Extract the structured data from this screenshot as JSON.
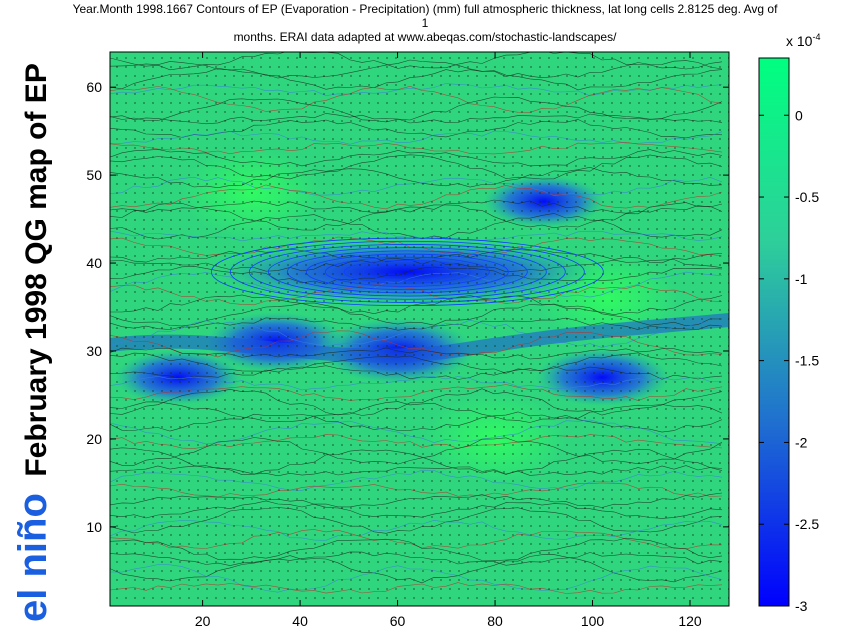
{
  "title_lines": [
    "Year.Month  1998.1667  Contours of EP (Evaporation - Precipitation) (mm) full atmospheric thickness,  lat long cells  2.8125 deg. Avg of",
    "1",
    "months. ERAI data adapted at www.abeqas.com/stochastic-landscapes/"
  ],
  "side_label": {
    "part1": "el niño",
    "part2": "February 1998 QG map of EP",
    "color1": "#1a5fe0",
    "color2": "#000000"
  },
  "colorbar": {
    "exponent_label": "x 10",
    "exponent_power": "-4",
    "ticks": [
      0,
      -0.5,
      -1,
      -1.5,
      -2,
      -2.5,
      -3
    ],
    "tick_labels": [
      "0",
      "-0.5",
      "-1",
      "-1.5",
      "-2",
      "-2.5",
      "-3"
    ],
    "range": [
      -3,
      0.35
    ],
    "colors": [
      "#0000ff",
      "#1f6fd0",
      "#2ecf9a",
      "#00ff80"
    ]
  },
  "chart_data": {
    "type": "heatmap",
    "title": "Year.Month  1998.1667  Contours of EP (Evaporation - Precipitation) (mm) full atmospheric thickness,  lat long cells  2.8125 deg. Avg of 1 months. ERAI data adapted at www.abeqas.com/stochastic-landscapes/",
    "xlim": [
      1,
      128
    ],
    "ylim": [
      1,
      64
    ],
    "x_ticks": [
      20,
      40,
      60,
      80,
      100,
      120
    ],
    "y_ticks": [
      10,
      20,
      30,
      40,
      50,
      60
    ],
    "x_tick_labels": [
      "20",
      "40",
      "60",
      "80",
      "100",
      "120"
    ],
    "y_tick_labels": [
      "10",
      "20",
      "30",
      "40",
      "50",
      "60"
    ],
    "zlim": [
      -0.0003,
      3.5e-05
    ],
    "low_regions": [
      {
        "x": 62,
        "y": 39,
        "value": -0.0003
      },
      {
        "x": 60,
        "y": 30,
        "value": -0.00022
      },
      {
        "x": 35,
        "y": 31,
        "value": -0.00018
      },
      {
        "x": 102,
        "y": 27,
        "value": -0.00016
      },
      {
        "x": 15,
        "y": 27,
        "value": -0.00014
      },
      {
        "x": 90,
        "y": 47,
        "value": -0.00012
      }
    ],
    "high_regions": [
      {
        "x": 103,
        "y": 36,
        "value": 3e-05
      },
      {
        "x": 80,
        "y": 20,
        "value": 2.5e-05
      },
      {
        "x": 30,
        "y": 48,
        "value": 2e-05
      }
    ]
  }
}
